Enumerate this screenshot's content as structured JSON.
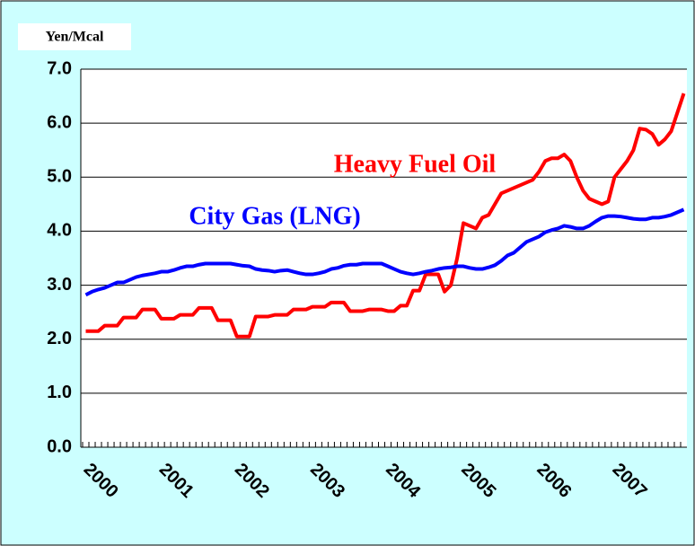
{
  "chart_data": {
    "type": "line",
    "y_label": "Yen/Mcal",
    "categories": [
      "2000",
      null,
      null,
      null,
      null,
      null,
      null,
      null,
      null,
      null,
      null,
      null,
      "2001",
      null,
      null,
      null,
      null,
      null,
      null,
      null,
      null,
      null,
      null,
      null,
      "2002",
      null,
      null,
      null,
      null,
      null,
      null,
      null,
      null,
      null,
      null,
      null,
      "2003",
      null,
      null,
      null,
      null,
      null,
      null,
      null,
      null,
      null,
      null,
      null,
      "2004",
      null,
      null,
      null,
      null,
      null,
      null,
      null,
      null,
      null,
      null,
      null,
      "2005",
      null,
      null,
      null,
      null,
      null,
      null,
      null,
      null,
      null,
      null,
      null,
      "2006",
      null,
      null,
      null,
      null,
      null,
      null,
      null,
      null,
      null,
      null,
      null,
      "2007",
      null,
      null,
      null,
      null,
      null,
      null,
      null,
      null,
      null,
      null,
      null
    ],
    "ylim": [
      0,
      7
    ],
    "yticks": [
      {
        "value": 0,
        "label": "0.0"
      },
      {
        "value": 1,
        "label": "1.0"
      },
      {
        "value": 2,
        "label": "2.0"
      },
      {
        "value": 3,
        "label": "3.0"
      },
      {
        "value": 4,
        "label": "4.0"
      },
      {
        "value": 5,
        "label": "5.0"
      },
      {
        "value": 6,
        "label": "6.0"
      },
      {
        "value": 7,
        "label": "7.0"
      }
    ],
    "grid": true,
    "series": [
      {
        "name": "Heavy Fuel Oil",
        "color": "#ff0000",
        "values": [
          2.15,
          2.15,
          2.15,
          2.25,
          2.25,
          2.25,
          2.4,
          2.4,
          2.4,
          2.55,
          2.55,
          2.55,
          2.38,
          2.38,
          2.38,
          2.45,
          2.45,
          2.45,
          2.58,
          2.58,
          2.58,
          2.35,
          2.35,
          2.35,
          2.05,
          2.05,
          2.05,
          2.42,
          2.42,
          2.42,
          2.45,
          2.45,
          2.45,
          2.55,
          2.55,
          2.55,
          2.6,
          2.6,
          2.6,
          2.68,
          2.68,
          2.68,
          2.52,
          2.52,
          2.52,
          2.55,
          2.55,
          2.55,
          2.52,
          2.52,
          2.62,
          2.62,
          2.9,
          2.9,
          3.2,
          3.2,
          3.2,
          2.88,
          3.0,
          3.5,
          4.15,
          4.1,
          4.05,
          4.25,
          4.3,
          4.5,
          4.7,
          4.75,
          4.8,
          4.85,
          4.9,
          4.95,
          5.1,
          5.3,
          5.35,
          5.35,
          5.42,
          5.3,
          5.0,
          4.75,
          4.6,
          4.55,
          4.5,
          4.55,
          5.0,
          5.15,
          5.3,
          5.5,
          5.9,
          5.88,
          5.8,
          5.6,
          5.7,
          5.85,
          6.2,
          6.55
        ]
      },
      {
        "name": "City Gas (LNG)",
        "color": "#0000ff",
        "values": [
          2.82,
          2.88,
          2.92,
          2.95,
          3.0,
          3.05,
          3.05,
          3.1,
          3.15,
          3.18,
          3.2,
          3.22,
          3.25,
          3.25,
          3.28,
          3.32,
          3.35,
          3.35,
          3.38,
          3.4,
          3.4,
          3.4,
          3.4,
          3.4,
          3.38,
          3.36,
          3.35,
          3.3,
          3.28,
          3.27,
          3.25,
          3.27,
          3.28,
          3.25,
          3.22,
          3.2,
          3.2,
          3.22,
          3.25,
          3.3,
          3.32,
          3.36,
          3.38,
          3.38,
          3.4,
          3.4,
          3.4,
          3.4,
          3.35,
          3.3,
          3.25,
          3.22,
          3.2,
          3.22,
          3.25,
          3.27,
          3.3,
          3.32,
          3.33,
          3.35,
          3.35,
          3.32,
          3.3,
          3.3,
          3.33,
          3.37,
          3.45,
          3.55,
          3.6,
          3.7,
          3.8,
          3.85,
          3.9,
          3.98,
          4.02,
          4.05,
          4.1,
          4.08,
          4.05,
          4.05,
          4.1,
          4.18,
          4.25,
          4.28,
          4.28,
          4.27,
          4.25,
          4.23,
          4.22,
          4.22,
          4.25,
          4.25,
          4.27,
          4.3,
          4.35,
          4.4
        ]
      }
    ]
  }
}
